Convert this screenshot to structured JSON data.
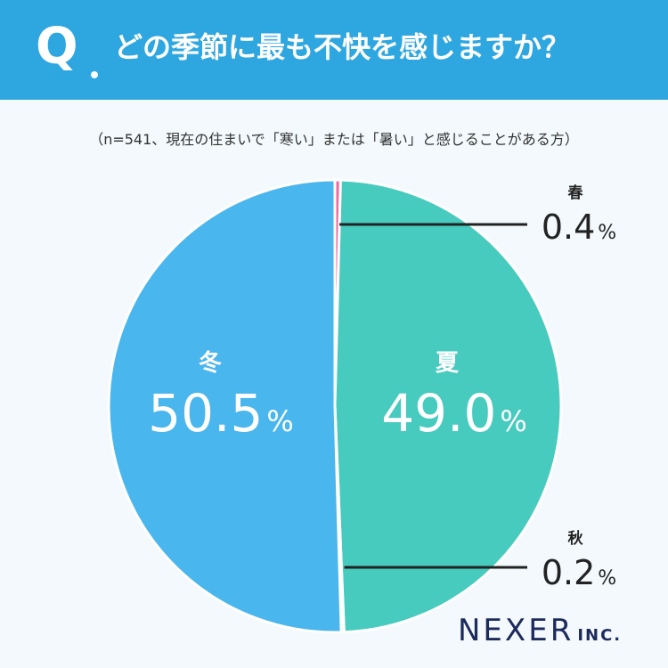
{
  "header": {
    "q_label": "Q",
    "question": "どの季節に最も不快を感じますか？"
  },
  "note": "（n=541、現在の住まいで「寒い」または「暑い」と感じることがある方）",
  "percent_sign": "%",
  "colors": {
    "header_bg": "#2ea7e0",
    "background": "#f3f9fc",
    "winter": "#4ab6ee",
    "summer": "#47cbbe",
    "spring": "#ec6c9c",
    "autumn": "#f2a14c",
    "callout_line": "#222222",
    "logo": "#1c2a5c"
  },
  "chart_data": {
    "type": "pie",
    "start": "top",
    "direction": "clockwise",
    "unit": "%",
    "slices": [
      {
        "label": "春",
        "value": 0.4,
        "value_text": "0.4",
        "color": "#ec6c9c",
        "label_style": "callout"
      },
      {
        "label": "夏",
        "value": 49.0,
        "value_text": "49.0",
        "color": "#47cbbe",
        "label_style": "inside"
      },
      {
        "label": "秋",
        "value": 0.2,
        "value_text": "0.2",
        "color": "#f2a14c",
        "label_style": "callout"
      },
      {
        "label": "冬",
        "value": 50.5,
        "value_text": "50.5",
        "color": "#4ab6ee",
        "label_style": "inside"
      }
    ]
  },
  "logo": {
    "main": "NEXER",
    "sub": "INC."
  }
}
